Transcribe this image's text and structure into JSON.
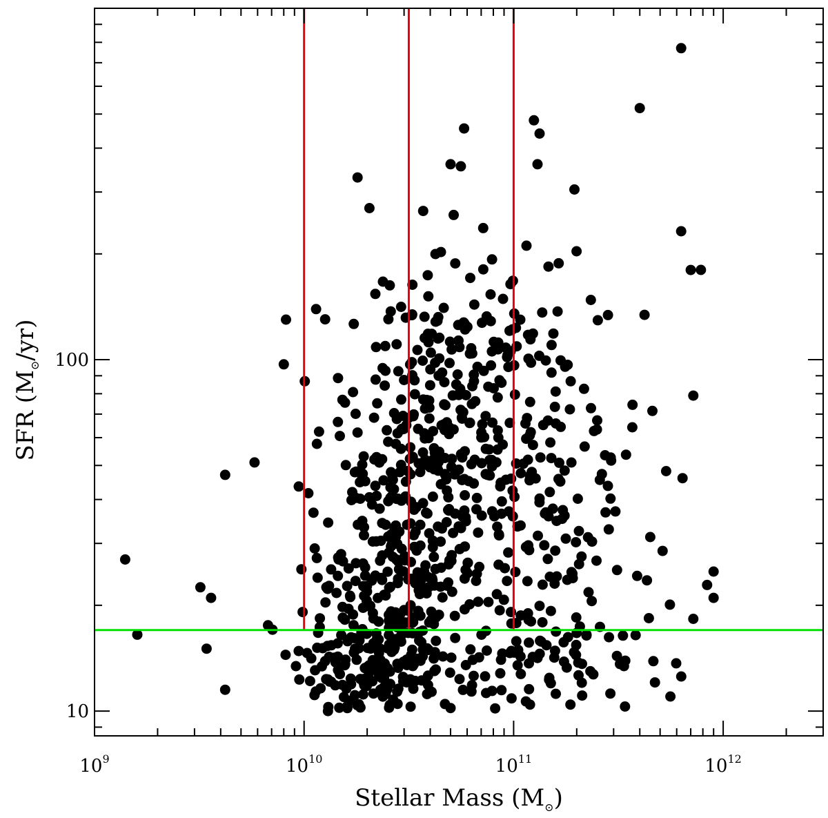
{
  "chart_data": {
    "type": "scatter",
    "xlabel": "Stellar Mass (M",
    "xlabel_sub": "⊙",
    "xlabel_end": ")",
    "ylabel": "SFR (M",
    "ylabel_sub": "⊙",
    "ylabel_end": "/yr)",
    "xscale": "log",
    "yscale": "log",
    "xlim": [
      1000000000.0,
      3000000000000.0
    ],
    "ylim": [
      8.5,
      1000
    ],
    "x_tick_labels": [
      {
        "value": 1000000000.0,
        "base": "10",
        "exp": "9"
      },
      {
        "value": 10000000000.0,
        "base": "10",
        "exp": "10"
      },
      {
        "value": 100000000000.0,
        "base": "10",
        "exp": "11"
      },
      {
        "value": 1000000000000.0,
        "base": "10",
        "exp": "12"
      }
    ],
    "y_tick_labels": [
      {
        "value": 10,
        "text": "10"
      },
      {
        "value": 100,
        "text": "100"
      }
    ],
    "vertical_lines": [
      10000000000.0,
      31600000000.0,
      100000000000.0
    ],
    "vertical_line_color": "#e8000b",
    "vertical_line_extent": [
      17,
      1000
    ],
    "horizontal_line": 17,
    "horizontal_line_color": "#00e000",
    "marker_color": "#000000",
    "notable_points": [
      {
        "x": 1400000000.0,
        "y": 27
      },
      {
        "x": 1600000000.0,
        "y": 16.5
      },
      {
        "x": 3200000000.0,
        "y": 22.5
      },
      {
        "x": 3600000000.0,
        "y": 21
      },
      {
        "x": 4200000000.0,
        "y": 47
      },
      {
        "x": 4200000000.0,
        "y": 11.5
      },
      {
        "x": 5800000000.0,
        "y": 51
      },
      {
        "x": 8000000000.0,
        "y": 97
      },
      {
        "x": 8200000000.0,
        "y": 130
      },
      {
        "x": 18000000000.0,
        "y": 330
      },
      {
        "x": 20500000000.0,
        "y": 270
      },
      {
        "x": 37000000000.0,
        "y": 265
      },
      {
        "x": 50000000000.0,
        "y": 360
      },
      {
        "x": 56000000000.0,
        "y": 355
      },
      {
        "x": 58000000000.0,
        "y": 455
      },
      {
        "x": 125000000000.0,
        "y": 480
      },
      {
        "x": 133000000000.0,
        "y": 440
      },
      {
        "x": 130000000000.0,
        "y": 360
      },
      {
        "x": 195000000000.0,
        "y": 305
      },
      {
        "x": 400000000000.0,
        "y": 520
      },
      {
        "x": 630000000000.0,
        "y": 770
      },
      {
        "x": 630000000000.0,
        "y": 232
      },
      {
        "x": 700000000000.0,
        "y": 180
      },
      {
        "x": 720000000000.0,
        "y": 79
      },
      {
        "x": 640000000000.0,
        "y": 46
      },
      {
        "x": 900000000000.0,
        "y": 21
      },
      {
        "x": 720000000000.0,
        "y": 18.3
      },
      {
        "x": 560000000000.0,
        "y": 11
      },
      {
        "x": 340000000000.0,
        "y": 10.3
      },
      {
        "x": 50000000000.0,
        "y": 10.2
      },
      {
        "x": 13000000000.0,
        "y": 10
      },
      {
        "x": 16000000000.0,
        "y": 10.3
      }
    ],
    "generated_clusters": [
      {
        "count": 190,
        "cx": 22000000000.0,
        "cy": 13.5,
        "sx": 0.2,
        "sy": 0.1
      },
      {
        "count": 140,
        "cx": 26000000000.0,
        "cy": 25,
        "sx": 0.17,
        "sy": 0.14
      },
      {
        "count": 230,
        "cx": 55000000000.0,
        "cy": 60,
        "sx": 0.22,
        "sy": 0.25
      },
      {
        "count": 100,
        "cx": 30000000000.0,
        "cy": 65,
        "sx": 0.2,
        "sy": 0.2
      },
      {
        "count": 120,
        "cx": 130000000000.0,
        "cy": 45,
        "sx": 0.25,
        "sy": 0.3
      },
      {
        "count": 80,
        "cx": 100000000000.0,
        "cy": 14,
        "sx": 0.3,
        "sy": 0.1
      },
      {
        "count": 50,
        "cx": 250000000000.0,
        "cy": 25,
        "sx": 0.3,
        "sy": 0.25
      }
    ]
  }
}
